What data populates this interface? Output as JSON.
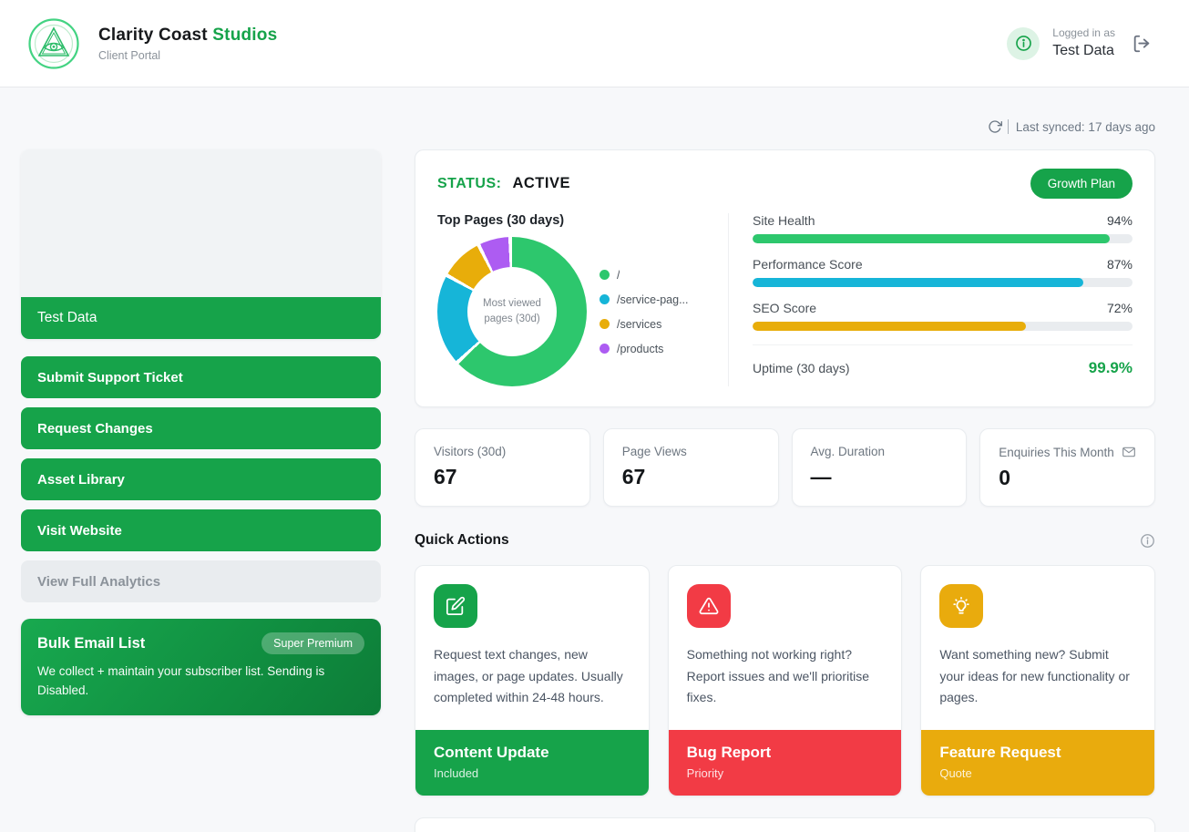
{
  "header": {
    "brand_name": "Clarity Coast",
    "brand_accent": "Studios",
    "subtitle": "Client Portal",
    "logged_in_label": "Logged in as",
    "user_name": "Test Data"
  },
  "toolbar": {
    "last_synced": "Last synced: 17 days ago"
  },
  "sidebar": {
    "site_card": {
      "label": "Test Data"
    },
    "buttons": [
      {
        "label": "Submit Support Ticket",
        "enabled": true
      },
      {
        "label": "Request Changes",
        "enabled": true
      },
      {
        "label": "Asset Library",
        "enabled": true
      },
      {
        "label": "Visit Website",
        "enabled": true
      },
      {
        "label": "View Full Analytics",
        "enabled": false
      }
    ],
    "bulk_email": {
      "title": "Bulk Email List",
      "badge": "Super Premium",
      "description": "We collect + maintain your subscriber list. Sending is Disabled."
    }
  },
  "status_card": {
    "status_label": "STATUS:",
    "status_value": "ACTIVE",
    "plan_button": "Growth Plan",
    "metrics": [
      {
        "label": "Site Health",
        "value": "94%",
        "percent": 94,
        "color": "#2dc76d"
      },
      {
        "label": "Performance Score",
        "value": "87%",
        "percent": 87,
        "color": "#16b5d8"
      },
      {
        "label": "SEO Score",
        "value": "72%",
        "percent": 72,
        "color": "#e8ad0a"
      }
    ],
    "uptime_label": "Uptime (30 days)",
    "uptime_value": "99.9%"
  },
  "chart_data": {
    "type": "pie",
    "title": "Top Pages (30 days)",
    "center_label": "Most viewed pages (30d)",
    "categories": [
      "/",
      "/service-pag...",
      "/services",
      "/products"
    ],
    "values": [
      63.5,
      20,
      9.5,
      7
    ],
    "values_unit": "% of page views (estimated from arc angles)",
    "colors": [
      "#2dc76d",
      "#16b5d8",
      "#e8ad0a",
      "#ad5cf2"
    ],
    "legend_position": "right",
    "donut_hole": true
  },
  "stats": [
    {
      "label": "Visitors (30d)",
      "value": "67"
    },
    {
      "label": "Page Views",
      "value": "67"
    },
    {
      "label": "Avg. Duration",
      "value": "—"
    },
    {
      "label": "Enquiries This Month",
      "value": "0",
      "icon": "envelope-icon"
    }
  ],
  "quick_actions": {
    "heading": "Quick Actions",
    "cards": [
      {
        "title": "Content Update",
        "tag": "Included",
        "description": "Request text changes, new images, or page updates. Usually completed within 24-48 hours.",
        "color": "#16a34a",
        "icon": "edit-icon"
      },
      {
        "title": "Bug Report",
        "tag": "Priority",
        "description": "Something not working right? Report issues and we'll prioritise fixes.",
        "color": "#f23b45",
        "icon": "alert-triangle-icon"
      },
      {
        "title": "Feature Request",
        "tag": "Quote",
        "description": "Want something new? Submit your ideas for new functionality or pages.",
        "color": "#e9ab0d",
        "icon": "lightbulb-icon"
      }
    ]
  }
}
